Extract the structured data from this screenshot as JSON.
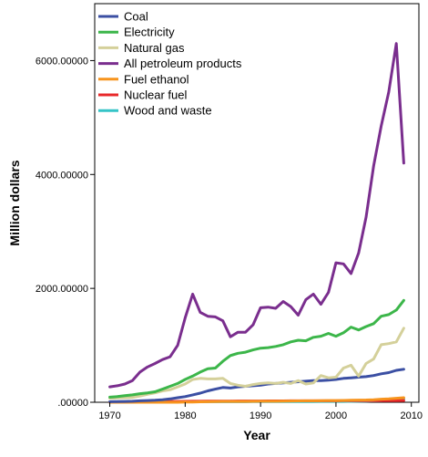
{
  "chart_data": {
    "type": "line",
    "title": "",
    "xlabel": "Year",
    "ylabel": "Million dollars",
    "xlim": [
      1968,
      2011
    ],
    "ylim": [
      0,
      7000
    ],
    "x_ticks": [
      1970,
      1980,
      1990,
      2000,
      2010
    ],
    "x_tick_labels": [
      "1970",
      "1980",
      "1990",
      "2000",
      "2010"
    ],
    "y_ticks": [
      0,
      2000,
      4000,
      6000
    ],
    "y_tick_labels": [
      ".00000",
      "2000.00000",
      "4000.00000",
      "6000.00000"
    ],
    "grid": false,
    "legend_position": "top-left",
    "x": [
      1970,
      1971,
      1972,
      1973,
      1974,
      1975,
      1976,
      1977,
      1978,
      1979,
      1980,
      1981,
      1982,
      1983,
      1984,
      1985,
      1986,
      1987,
      1988,
      1989,
      1990,
      1991,
      1992,
      1993,
      1994,
      1995,
      1996,
      1997,
      1998,
      1999,
      2000,
      2001,
      2002,
      2003,
      2004,
      2005,
      2006,
      2007,
      2008,
      2009
    ],
    "series": [
      {
        "name": "Coal",
        "color": "#3b4fa3",
        "values": [
          10,
          12,
          14,
          18,
          25,
          30,
          35,
          45,
          60,
          80,
          100,
          130,
          160,
          200,
          230,
          260,
          250,
          270,
          280,
          290,
          300,
          320,
          330,
          340,
          350,
          360,
          370,
          380,
          380,
          390,
          400,
          420,
          430,
          440,
          450,
          470,
          500,
          520,
          560,
          580
        ]
      },
      {
        "name": "Electricity",
        "color": "#3cb64a",
        "values": [
          90,
          100,
          115,
          130,
          150,
          165,
          185,
          230,
          280,
          330,
          400,
          460,
          530,
          590,
          600,
          720,
          820,
          860,
          880,
          920,
          950,
          960,
          980,
          1010,
          1060,
          1090,
          1080,
          1140,
          1160,
          1210,
          1160,
          1220,
          1320,
          1270,
          1330,
          1380,
          1510,
          1540,
          1620,
          1790
        ]
      },
      {
        "name": "Natural gas",
        "color": "#d4d09a",
        "values": [
          70,
          75,
          80,
          85,
          110,
          140,
          165,
          200,
          220,
          270,
          320,
          400,
          420,
          410,
          410,
          420,
          330,
          300,
          280,
          310,
          330,
          340,
          330,
          350,
          330,
          380,
          320,
          340,
          470,
          430,
          440,
          600,
          650,
          460,
          680,
          760,
          1010,
          1030,
          1060,
          1300
        ]
      },
      {
        "name": "All petroleum products",
        "color": "#7a2e8e",
        "values": [
          270,
          290,
          320,
          380,
          530,
          620,
          680,
          750,
          800,
          1000,
          1480,
          1900,
          1580,
          1510,
          1500,
          1430,
          1150,
          1230,
          1230,
          1360,
          1660,
          1670,
          1650,
          1770,
          1680,
          1530,
          1800,
          1900,
          1720,
          1930,
          2450,
          2430,
          2260,
          2620,
          3250,
          4150,
          4850,
          5450,
          6300,
          4200
        ]
      },
      {
        "name": "Fuel ethanol",
        "color": "#f7941d",
        "values": [
          0,
          0,
          0,
          0,
          0,
          0,
          0,
          0,
          0,
          0,
          3,
          5,
          8,
          10,
          12,
          14,
          15,
          15,
          15,
          16,
          17,
          18,
          18,
          20,
          22,
          24,
          25,
          26,
          28,
          30,
          30,
          32,
          35,
          38,
          40,
          45,
          55,
          60,
          70,
          80
        ]
      },
      {
        "name": "Nuclear fuel",
        "color": "#e8292b",
        "values": [
          2,
          3,
          4,
          5,
          6,
          8,
          10,
          12,
          14,
          15,
          16,
          17,
          18,
          19,
          20,
          20,
          21,
          22,
          22,
          23,
          23,
          24,
          24,
          24,
          25,
          25,
          25,
          26,
          26,
          26,
          26,
          27,
          27,
          27,
          28,
          28,
          28,
          29,
          29,
          30
        ]
      },
      {
        "name": "Wood and waste",
        "color": "#35c4c7",
        "values": [
          5,
          5,
          5,
          5,
          6,
          6,
          6,
          7,
          7,
          8,
          8,
          8,
          9,
          9,
          9,
          10,
          10,
          10,
          10,
          11,
          11,
          11,
          12,
          12,
          12,
          13,
          13,
          13,
          14,
          14,
          15,
          15,
          16,
          18,
          20,
          25,
          30,
          40,
          55,
          60
        ]
      }
    ]
  }
}
